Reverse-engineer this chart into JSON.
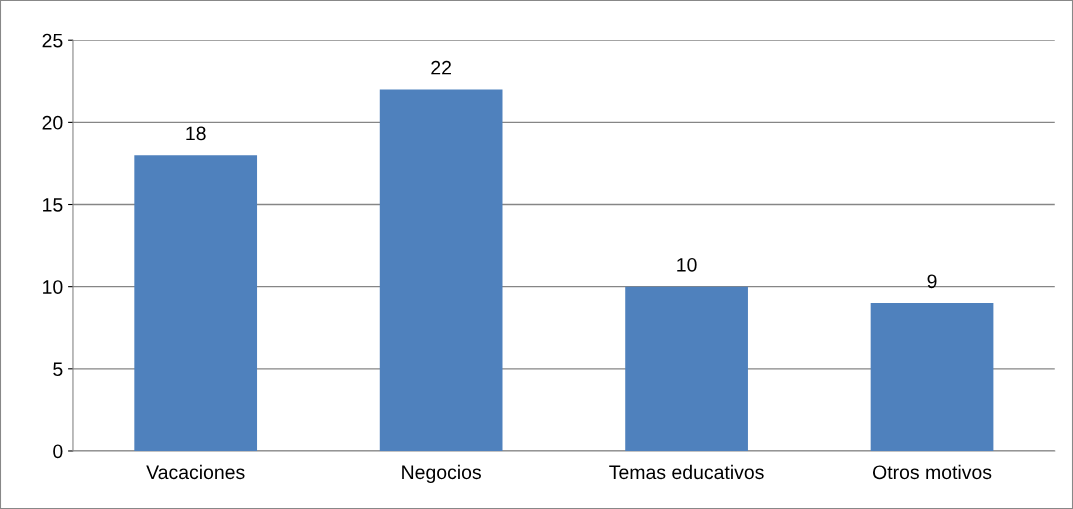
{
  "chart_data": {
    "type": "bar",
    "categories": [
      "Vacaciones",
      "Negocios",
      "Temas educativos",
      "Otros motivos"
    ],
    "values": [
      18,
      22,
      10,
      9
    ],
    "color": "#4f81bd",
    "ylim": [
      0,
      25
    ],
    "yticks": [
      0,
      5,
      10,
      15,
      20,
      25
    ],
    "grid": "y",
    "data_labels": true
  }
}
